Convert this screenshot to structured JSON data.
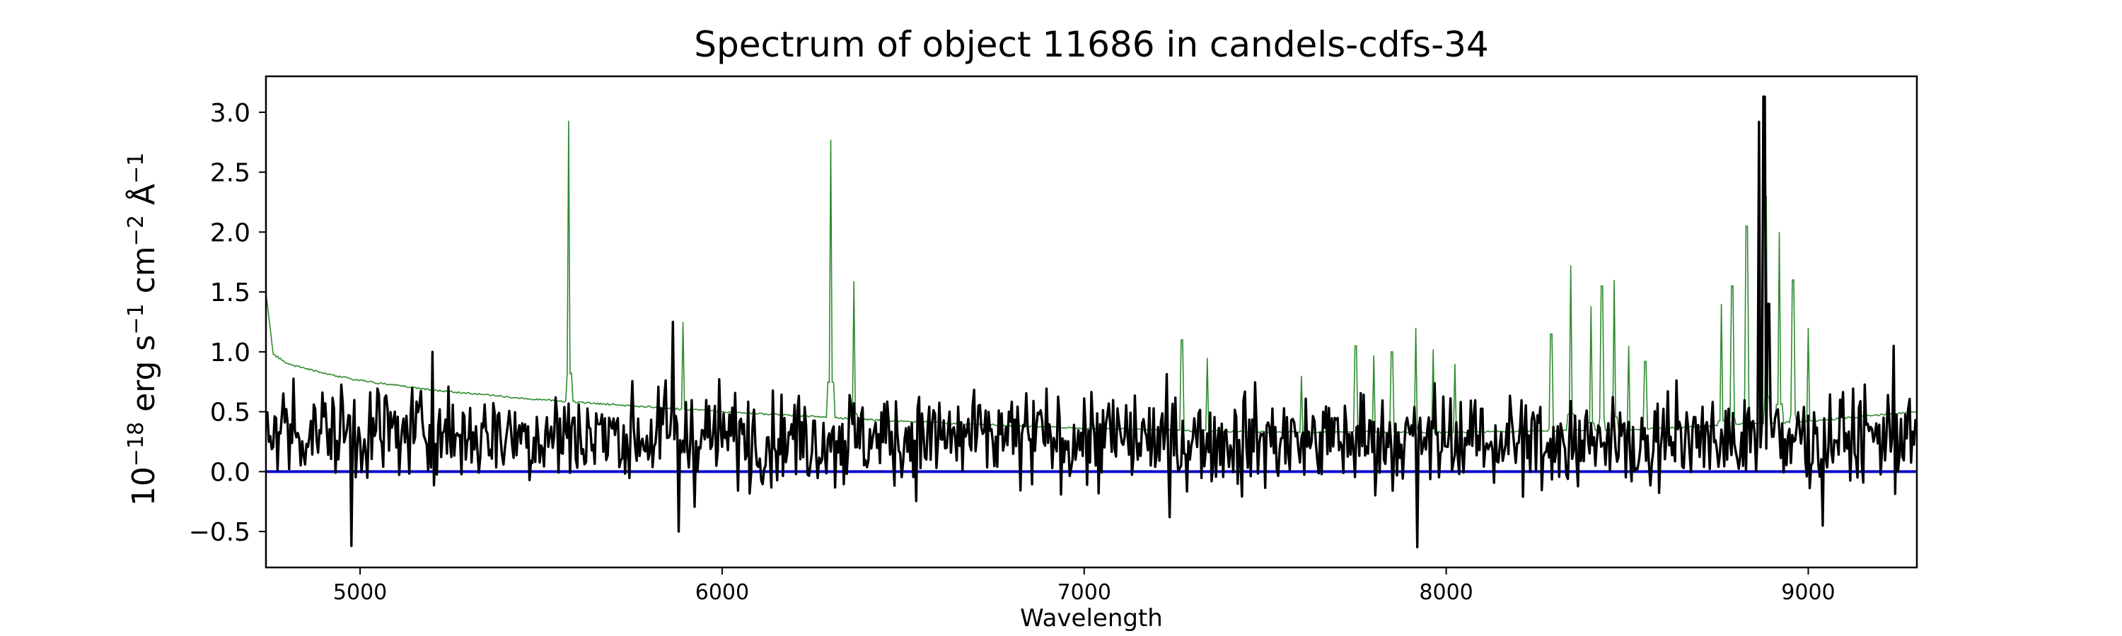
{
  "chart_data": {
    "type": "line",
    "title": "Spectrum of object 11686 in candels-cdfs-34",
    "xlabel": "Wavelength",
    "ylabel": {
      "prefix": "10",
      "exp1": "−18",
      "mid1": " erg s",
      "exp2": "−1",
      "mid2": " cm",
      "exp3": "−2",
      "mid3": " Å",
      "exp4": "−1"
    },
    "xlim": [
      4740,
      9300
    ],
    "ylim": [
      -0.8,
      3.3
    ],
    "xticks": [
      5000,
      6000,
      7000,
      8000,
      9000
    ],
    "yticks": [
      -0.5,
      0.0,
      0.5,
      1.0,
      1.5,
      2.0,
      2.5,
      3.0
    ],
    "ytick_labels": [
      "−0.5",
      "0.0",
      "0.5",
      "1.0",
      "1.5",
      "2.0",
      "2.5",
      "3.0"
    ],
    "grid": false,
    "colors": {
      "flux": "#000000",
      "model": "#2e8b2e",
      "zero": "#0b0bd0"
    },
    "continuum": {
      "x": [
        4740,
        4760,
        4800,
        4900,
        5000,
        5200,
        5500,
        6000,
        6500,
        7000,
        7500,
        8000,
        8500,
        9000,
        9300
      ],
      "y": [
        1.5,
        0.98,
        0.9,
        0.82,
        0.76,
        0.68,
        0.6,
        0.5,
        0.42,
        0.36,
        0.33,
        0.33,
        0.35,
        0.42,
        0.5
      ]
    },
    "model_lines": [
      {
        "x": 5577,
        "y": 2.93
      },
      {
        "x": 5893,
        "y": 1.25
      },
      {
        "x": 6300,
        "y": 2.77
      },
      {
        "x": 6364,
        "y": 1.59
      },
      {
        "x": 7270,
        "y": 1.1
      },
      {
        "x": 7340,
        "y": 0.95
      },
      {
        "x": 7600,
        "y": 0.8
      },
      {
        "x": 7750,
        "y": 1.05
      },
      {
        "x": 7800,
        "y": 0.97
      },
      {
        "x": 7850,
        "y": 1.0
      },
      {
        "x": 7915,
        "y": 1.2
      },
      {
        "x": 7965,
        "y": 1.02
      },
      {
        "x": 8025,
        "y": 0.9
      },
      {
        "x": 8290,
        "y": 1.15
      },
      {
        "x": 8344,
        "y": 1.72
      },
      {
        "x": 8400,
        "y": 1.38
      },
      {
        "x": 8430,
        "y": 1.55
      },
      {
        "x": 8465,
        "y": 1.6
      },
      {
        "x": 8505,
        "y": 1.05
      },
      {
        "x": 8550,
        "y": 0.92
      },
      {
        "x": 8760,
        "y": 1.4
      },
      {
        "x": 8790,
        "y": 1.55
      },
      {
        "x": 8830,
        "y": 2.05
      },
      {
        "x": 8885,
        "y": 2.3
      },
      {
        "x": 8920,
        "y": 2.0
      },
      {
        "x": 8958,
        "y": 1.6
      },
      {
        "x": 9000,
        "y": 1.2
      }
    ],
    "flux_features": [
      {
        "x": 4975,
        "y": -0.62
      },
      {
        "x": 5200,
        "y": 1.0
      },
      {
        "x": 5865,
        "y": 1.25
      },
      {
        "x": 5880,
        "y": -0.5
      },
      {
        "x": 7235,
        "y": -0.38
      },
      {
        "x": 7920,
        "y": -0.63
      },
      {
        "x": 8865,
        "y": 2.92
      },
      {
        "x": 8878,
        "y": 3.13
      },
      {
        "x": 8890,
        "y": 1.4
      },
      {
        "x": 9040,
        "y": -0.45
      },
      {
        "x": 9235,
        "y": 1.05
      }
    ],
    "flux_noise_sigma": 0.2,
    "flux_base": 0.28
  }
}
